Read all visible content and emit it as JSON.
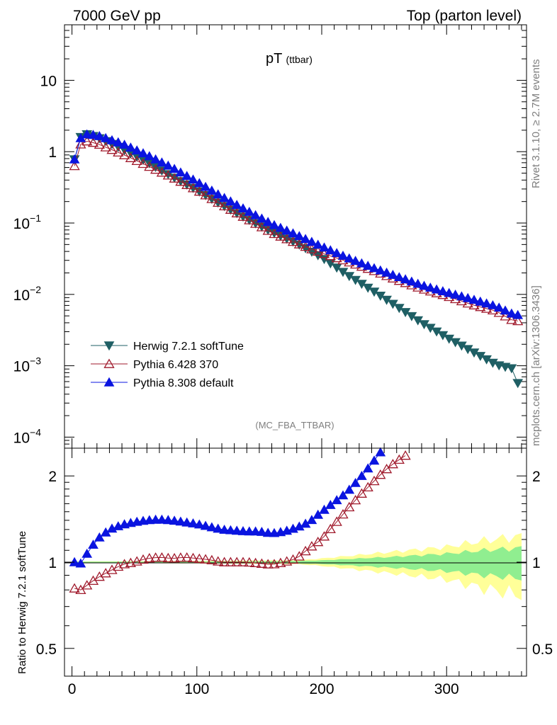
{
  "header": {
    "left": "7000 GeV pp",
    "right": "Top (parton level)"
  },
  "side_labels": {
    "rivet": "Rivet 3.1.10, ≥ 2.7M events",
    "mcplots": "mcplots.cern.ch [arXiv:1306.3436]"
  },
  "chart_data": [
    {
      "type": "scatter",
      "title_main": "pT",
      "title_sub": "(ttbar)",
      "watermark": "(MC_FBA_TTBAR)",
      "yscale": "log",
      "xlim": [
        -6,
        364
      ],
      "ylim": [
        7e-05,
        60
      ],
      "y_ticks": [
        {
          "value": 10,
          "label": "10",
          "exp": ""
        },
        {
          "value": 1,
          "label": "1",
          "exp": ""
        },
        {
          "value": 0.1,
          "label": "10",
          "exp": "−1"
        },
        {
          "value": 0.01,
          "label": "10",
          "exp": "−2"
        },
        {
          "value": 0.001,
          "label": "10",
          "exp": "−3"
        },
        {
          "value": 0.0001,
          "label": "10",
          "exp": "−4"
        }
      ],
      "legend_position": "bottom-left",
      "series": [
        {
          "name": "Herwig 7.2.1 softTune",
          "color": "#1f5f64",
          "marker": "triangle-down-filled",
          "anchors": [
            [
              2,
              0.78
            ],
            [
              7,
              1.6
            ],
            [
              12,
              1.75
            ],
            [
              20,
              1.6
            ],
            [
              40,
              1.1
            ],
            [
              60,
              0.72
            ],
            [
              80,
              0.45
            ],
            [
              100,
              0.29
            ],
            [
              120,
              0.18
            ],
            [
              140,
              0.115
            ],
            [
              160,
              0.075
            ],
            [
              180,
              0.052
            ],
            [
              200,
              0.033
            ],
            [
              220,
              0.019
            ],
            [
              240,
              0.0115
            ],
            [
              260,
              0.0068
            ],
            [
              280,
              0.004
            ],
            [
              300,
              0.0025
            ],
            [
              320,
              0.0016
            ],
            [
              340,
              0.00103
            ],
            [
              352,
              0.00092
            ],
            [
              358,
              0.00052
            ]
          ]
        },
        {
          "name": "Pythia 6.428 370",
          "color": "#a01a2c",
          "marker": "triangle-up-open",
          "anchors": [
            [
              2,
              0.63
            ],
            [
              7,
              1.27
            ],
            [
              12,
              1.4
            ],
            [
              20,
              1.3
            ],
            [
              40,
              0.93
            ],
            [
              60,
              0.64
            ],
            [
              80,
              0.44
            ],
            [
              100,
              0.29
            ],
            [
              120,
              0.18
            ],
            [
              140,
              0.115
            ],
            [
              160,
              0.073
            ],
            [
              180,
              0.052
            ],
            [
              200,
              0.038
            ],
            [
              220,
              0.029
            ],
            [
              240,
              0.022
            ],
            [
              260,
              0.016
            ],
            [
              280,
              0.012
            ],
            [
              300,
              0.0095
            ],
            [
              320,
              0.0072
            ],
            [
              340,
              0.0058
            ],
            [
              352,
              0.0044
            ],
            [
              358,
              0.0042
            ]
          ]
        },
        {
          "name": "Pythia 8.308 default",
          "color": "#0a14e0",
          "marker": "triangle-up-filled",
          "anchors": [
            [
              2,
              0.78
            ],
            [
              7,
              1.55
            ],
            [
              12,
              1.75
            ],
            [
              20,
              1.7
            ],
            [
              40,
              1.3
            ],
            [
              60,
              0.9
            ],
            [
              80,
              0.6
            ],
            [
              100,
              0.38
            ],
            [
              120,
              0.235
            ],
            [
              140,
              0.15
            ],
            [
              160,
              0.097
            ],
            [
              180,
              0.068
            ],
            [
              200,
              0.047
            ],
            [
              220,
              0.033
            ],
            [
              240,
              0.024
            ],
            [
              260,
              0.018
            ],
            [
              280,
              0.0135
            ],
            [
              300,
              0.0107
            ],
            [
              320,
              0.0086
            ],
            [
              340,
              0.0068
            ],
            [
              352,
              0.0054
            ],
            [
              358,
              0.0051
            ]
          ]
        }
      ]
    },
    {
      "type": "scatter",
      "ylabel": "Ratio to Herwig 7.2.1 softTune",
      "yscale": "log",
      "xlim": [
        -6,
        364
      ],
      "ylim": [
        0.4,
        2.5
      ],
      "y_ticks": [
        {
          "value": 0.5,
          "label": "0.5"
        },
        {
          "value": 1,
          "label": "1"
        },
        {
          "value": 2,
          "label": "2"
        }
      ],
      "x_ticks": [
        {
          "value": 0,
          "label": "0"
        },
        {
          "value": 100,
          "label": "100"
        },
        {
          "value": 200,
          "label": "200"
        },
        {
          "value": 300,
          "label": "300"
        }
      ],
      "bands": {
        "inner_color": "#90ee90",
        "outer_color": "#ffff99",
        "inner": [
          [
            0,
            0.004
          ],
          [
            100,
            0.006
          ],
          [
            180,
            0.01
          ],
          [
            200,
            0.015
          ],
          [
            250,
            0.04
          ],
          [
            300,
            0.07
          ],
          [
            330,
            0.1
          ],
          [
            358,
            0.12
          ]
        ],
        "outer": [
          [
            0,
            0.006
          ],
          [
            100,
            0.01
          ],
          [
            180,
            0.015
          ],
          [
            200,
            0.03
          ],
          [
            250,
            0.08
          ],
          [
            300,
            0.13
          ],
          [
            330,
            0.19
          ],
          [
            358,
            0.23
          ]
        ]
      },
      "series": [
        {
          "name": "Pythia 6.428 370",
          "color": "#a01a2c",
          "marker": "triangle-up-open",
          "anchors": [
            [
              2,
              0.81
            ],
            [
              7,
              0.8
            ],
            [
              12,
              0.83
            ],
            [
              20,
              0.88
            ],
            [
              30,
              0.93
            ],
            [
              40,
              0.98
            ],
            [
              50,
              1.0
            ],
            [
              60,
              1.03
            ],
            [
              70,
              1.04
            ],
            [
              80,
              1.03
            ],
            [
              90,
              1.04
            ],
            [
              100,
              1.03
            ],
            [
              110,
              1.02
            ],
            [
              120,
              1.0
            ],
            [
              130,
              1.0
            ],
            [
              140,
              1.0
            ],
            [
              150,
              0.99
            ],
            [
              160,
              0.98
            ],
            [
              170,
              1.0
            ],
            [
              180,
              1.03
            ],
            [
              190,
              1.12
            ],
            [
              200,
              1.2
            ],
            [
              210,
              1.35
            ],
            [
              220,
              1.52
            ],
            [
              230,
              1.7
            ],
            [
              240,
              1.88
            ],
            [
              250,
              2.08
            ],
            [
              260,
              2.25
            ],
            [
              270,
              2.4
            ]
          ]
        },
        {
          "name": "Pythia 8.308 default",
          "color": "#0a14e0",
          "marker": "triangle-up-filled",
          "anchors": [
            [
              2,
              1.0
            ],
            [
              7,
              0.99
            ],
            [
              12,
              1.07
            ],
            [
              20,
              1.2
            ],
            [
              30,
              1.3
            ],
            [
              40,
              1.35
            ],
            [
              50,
              1.38
            ],
            [
              60,
              1.4
            ],
            [
              70,
              1.41
            ],
            [
              80,
              1.4
            ],
            [
              90,
              1.38
            ],
            [
              100,
              1.36
            ],
            [
              110,
              1.33
            ],
            [
              120,
              1.3
            ],
            [
              130,
              1.29
            ],
            [
              140,
              1.28
            ],
            [
              150,
              1.28
            ],
            [
              160,
              1.26
            ],
            [
              170,
              1.28
            ],
            [
              180,
              1.32
            ],
            [
              190,
              1.38
            ],
            [
              200,
              1.5
            ],
            [
              210,
              1.62
            ],
            [
              220,
              1.75
            ],
            [
              230,
              1.95
            ],
            [
              240,
              2.2
            ],
            [
              248,
              2.45
            ]
          ]
        }
      ]
    }
  ]
}
